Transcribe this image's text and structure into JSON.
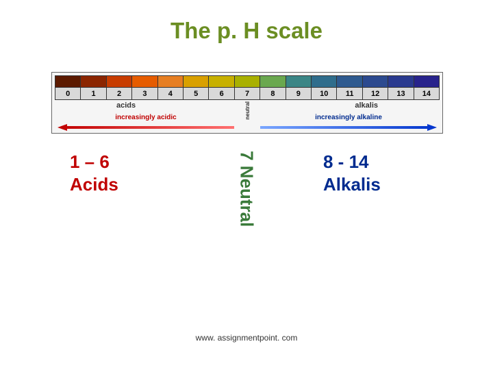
{
  "title": {
    "text": "The p. H scale",
    "color": "#6b8e23"
  },
  "scale": {
    "colors": [
      "#5c1a00",
      "#8b2500",
      "#c73c00",
      "#e65c00",
      "#e67e22",
      "#d9a000",
      "#c7b000",
      "#a9b000",
      "#6aa84f",
      "#3b8686",
      "#2f6d8c",
      "#2e5a8f",
      "#2c4a8f",
      "#2a3a8f",
      "#28238c"
    ],
    "numbers": [
      "0",
      "1",
      "2",
      "3",
      "4",
      "5",
      "6",
      "7",
      "8",
      "9",
      "10",
      "11",
      "12",
      "13",
      "14"
    ],
    "label_acids": "acids",
    "label_neutral": "neutral",
    "label_alkalis": "alkalis",
    "arrow_acid_label": "increasingly acidic",
    "arrow_acid_color": "#c00000",
    "arrow_alk_label": "increasingly alkaline",
    "arrow_alk_color": "#0033cc"
  },
  "annotations": {
    "acids_range": "1 – 6",
    "acids_label": "Acids",
    "acids_color": "#c00000",
    "neutral_text": "7 Neutral",
    "neutral_color": "#3a7a3a",
    "alkalis_range": "8 - 14",
    "alkalis_label": "Alkalis",
    "alkalis_color": "#002b8f"
  },
  "footer": "www. assignmentpoint. com"
}
